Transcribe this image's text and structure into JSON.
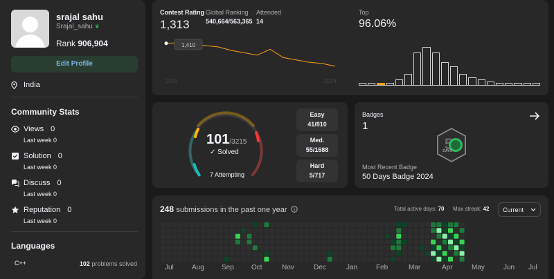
{
  "profile": {
    "name": "srajal sahu",
    "username": "Srajal_sahu",
    "rank_label": "Rank",
    "rank_value": "906,904",
    "edit_label": "Edit Profile",
    "location": "India"
  },
  "community": {
    "title": "Community Stats",
    "stats": [
      {
        "label": "Views",
        "value": "0",
        "sub": "Last week 0",
        "icon": "eye-icon"
      },
      {
        "label": "Solution",
        "value": "0",
        "sub": "Last week 0",
        "icon": "check-square-icon"
      },
      {
        "label": "Discuss",
        "value": "0",
        "sub": "Last week 0",
        "icon": "chat-icon"
      },
      {
        "label": "Reputation",
        "value": "0",
        "sub": "Last week 0",
        "icon": "star-icon"
      }
    ]
  },
  "languages": {
    "title": "Languages",
    "items": [
      {
        "name": "C++",
        "count": "102",
        "suffix": "problems solved"
      }
    ]
  },
  "contest": {
    "rating_label": "Contest Rating",
    "rating_value": "1,313",
    "global_label": "Global Ranking",
    "global_value": "540,664/563,365",
    "attended_label": "Attended",
    "attended_value": "14",
    "top_label": "Top",
    "top_value": "96.06%",
    "tooltip": "1,410",
    "year_start": "2023",
    "year_end": "2024",
    "chart_data": {
      "type": "line",
      "series": [
        {
          "values": [
            1410,
            1412,
            1405,
            1400,
            1395,
            1380,
            1370,
            1360,
            1385,
            1350,
            1340,
            1330,
            1325,
            1313
          ]
        }
      ],
      "color": "#ffa116"
    },
    "top_chart": {
      "type": "bar",
      "values": [
        0.05,
        0.05,
        0.05,
        0.05,
        0.15,
        0.3,
        0.85,
        1.0,
        0.85,
        0.6,
        0.5,
        0.3,
        0.2,
        0.15,
        0.1,
        0.05,
        0.05,
        0.05,
        0.05,
        0.05
      ],
      "highlight_index": 2,
      "highlight_color": "#ffa116"
    }
  },
  "solved": {
    "solved_count": "101",
    "total": "/3215",
    "solved_label": "Solved",
    "attempting": "7 Attempting",
    "easy_label": "Easy",
    "easy_value": "41/810",
    "med_label": "Med.",
    "med_value": "55/1688",
    "hard_label": "Hard",
    "hard_value": "5/717",
    "ring": {
      "easy": 41,
      "medium": 55,
      "hard": 5
    }
  },
  "badges": {
    "title": "Badges",
    "count": "1",
    "recent_label": "Most Recent Badge",
    "recent_name": "50 Days Badge 2024",
    "badge_days": "DAYS"
  },
  "heatmap": {
    "count": "248",
    "text": "submissions in the past one year",
    "active_label": "Total active days:",
    "active_value": "70",
    "streak_label": "Max streak:",
    "streak_value": "42",
    "dropdown": "Current",
    "months": [
      "Jul",
      "Aug",
      "Sep",
      "Oct",
      "Nov",
      "Dec",
      "Jan",
      "Feb",
      "Mar",
      "Apr",
      "May",
      "Jun",
      "Jul"
    ]
  },
  "colors": {
    "accent_green": "#2cbb5d",
    "easy": "#1cbaba",
    "medium": "#ffb700",
    "hard": "#f63737"
  }
}
